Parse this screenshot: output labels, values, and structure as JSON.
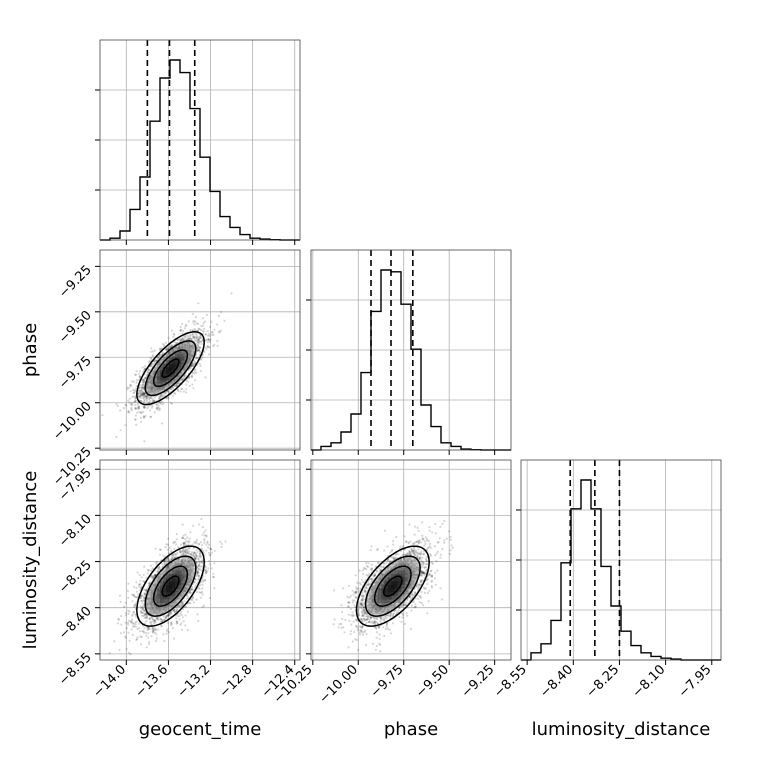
{
  "chart_data": {
    "type": "corner",
    "parameters": [
      {
        "name": "geocent_time",
        "xlabel": "geocent_time",
        "ylabel": "",
        "ticks": [
          "−14.0",
          "−13.6",
          "−13.2",
          "−12.8",
          "−12.4"
        ],
        "tick_values": [
          -14.0,
          -13.6,
          -13.2,
          -12.8,
          -12.4
        ],
        "range": [
          -14.25,
          -12.35
        ],
        "quantiles": [
          -13.8,
          -13.59,
          -13.35
        ]
      },
      {
        "name": "phase",
        "xlabel": "phase",
        "ylabel": "phase",
        "ticks": [
          "−10.25",
          "−10.00",
          "−9.75",
          "−9.50",
          "−9.25"
        ],
        "tick_values": [
          -10.25,
          -10.0,
          -9.75,
          -9.5,
          -9.25
        ],
        "range": [
          -10.26,
          -9.16
        ],
        "quantiles": [
          -9.93,
          -9.82,
          -9.7
        ]
      },
      {
        "name": "luminosity_distance",
        "xlabel": "luminosity_distance",
        "ylabel": "luminosity_distance",
        "ticks": [
          "−8.55",
          "−8.40",
          "−8.25",
          "−8.10",
          "−7.95"
        ],
        "tick_values": [
          -8.55,
          -8.4,
          -8.25,
          -8.1,
          -7.95
        ],
        "range": [
          -8.57,
          -7.92
        ],
        "quantiles": [
          -8.41,
          -8.33,
          -8.25
        ]
      }
    ],
    "histograms": [
      {
        "param": 0,
        "edges_start": -14.25,
        "bin_width": 0.095,
        "counts": [
          0,
          1,
          5,
          17,
          35,
          66,
          90,
          100,
          93,
          73,
          46,
          27,
          13,
          7,
          3,
          1,
          0.5,
          0.2,
          0,
          0
        ]
      },
      {
        "param": 1,
        "edges_start": -10.26,
        "bin_width": 0.055,
        "counts": [
          0,
          2,
          4,
          10,
          20,
          43,
          77,
          100,
          99,
          81,
          56,
          25,
          13,
          4,
          2,
          0.5,
          0.2,
          0,
          0,
          0
        ]
      },
      {
        "param": 2,
        "edges_start": -8.57,
        "bin_width": 0.0325,
        "counts": [
          0,
          4,
          9,
          22,
          54,
          84,
          100,
          84,
          52,
          30,
          16,
          8,
          4,
          2,
          1,
          0.5,
          0,
          0,
          0,
          0
        ]
      }
    ],
    "pairs": [
      {
        "x": 0,
        "y": 1,
        "mean": [
          -13.58,
          -9.81
        ],
        "sd": [
          0.16,
          0.1
        ],
        "rho": 0.72
      },
      {
        "x": 0,
        "y": 2,
        "mean": [
          -13.58,
          -8.33
        ],
        "sd": [
          0.16,
          0.065
        ],
        "rho": 0.6
      },
      {
        "x": 1,
        "y": 2,
        "mean": [
          -9.81,
          -8.33
        ],
        "sd": [
          0.1,
          0.065
        ],
        "rho": 0.6
      }
    ],
    "contour_levels_sigma": [
      0.5,
      1.0,
      1.5,
      2.0
    ],
    "n_samples_per_panel": 2400,
    "grid": true
  }
}
